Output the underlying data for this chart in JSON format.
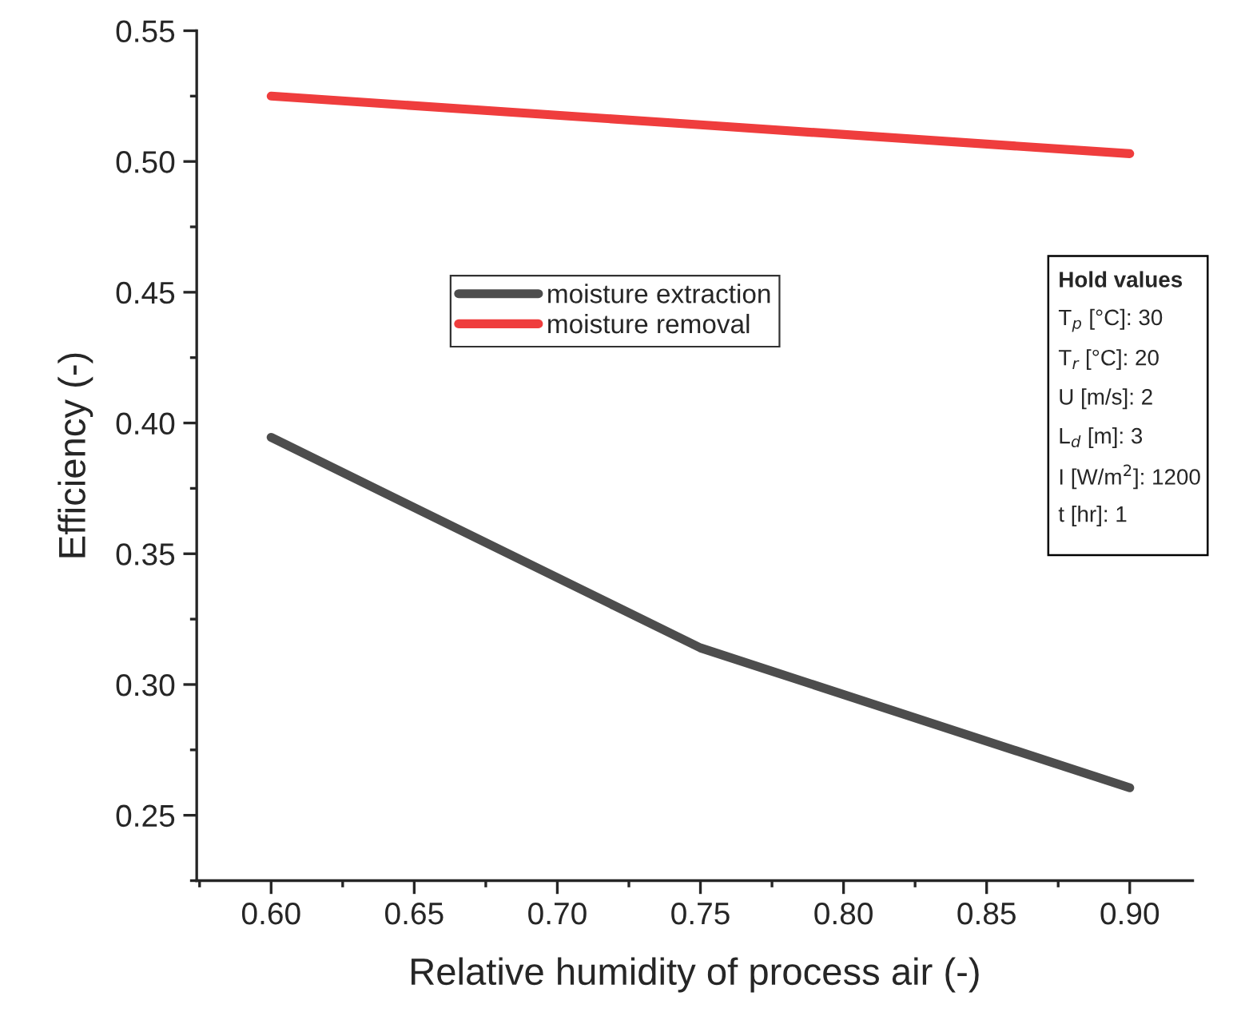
{
  "chart_data": {
    "type": "line",
    "xlabel": "Relative humidity of process air (-)",
    "ylabel": "Efficiency (-)",
    "x": [
      0.6,
      0.75,
      0.9
    ],
    "series": [
      {
        "name": "moisture extraction",
        "color": "#4d4d4d",
        "values": [
          0.3945,
          0.314,
          0.2605
        ]
      },
      {
        "name": "moisture removal",
        "color": "#ef3d3d",
        "values": [
          0.525,
          0.514,
          0.503
        ]
      }
    ],
    "xlim": [
      0.574,
      0.922
    ],
    "xticks": [
      {
        "value": 0.6,
        "label": "0.60"
      },
      0.65,
      {
        "value": 0.7,
        "label": "0.70"
      },
      0.75,
      {
        "value": 0.8,
        "label": "0.80"
      },
      0.85,
      {
        "value": 0.9,
        "label": "0.90"
      }
    ],
    "ylim": [
      0.225,
      0.55
    ],
    "yticks": [
      0.25,
      {
        "value": 0.3,
        "label": "0.30"
      },
      0.35,
      {
        "value": 0.4,
        "label": "0.40"
      },
      0.45,
      {
        "value": 0.5,
        "label": "0.50"
      },
      0.55
    ],
    "legend": "center",
    "grid": false,
    "marker": "none",
    "line_style": "solid",
    "annotations": [
      "Hold values",
      "T$_{p}$ [°C]: 30",
      "T$_{r}$ [°C]: 20",
      "U [m/s]: 2",
      "L$_{d}$ [m]: 3",
      "I [W/m$^{2}$]: 1200",
      "t [hr]: 1"
    ]
  }
}
